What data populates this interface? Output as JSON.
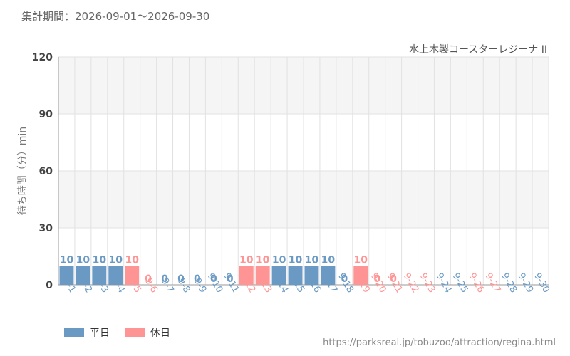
{
  "period_text": "集計期間：2026-09-01～2026-09-30",
  "source_url": "https://parksreal.jp/tobuzoo/attraction/regina.html",
  "colors": {
    "weekday": "#6a9ac4",
    "holiday": "#ff9494",
    "plot_band": "#f5f5f5",
    "grid": "#e2e2e2"
  },
  "chart_data": {
    "type": "bar",
    "title": "水上木製コースターレジーナ II",
    "ylabel": "待ち時間（分）min",
    "xlabel": "",
    "ylim": [
      0,
      120
    ],
    "yticks": [
      0,
      30,
      60,
      90,
      120
    ],
    "grid": true,
    "legend_position": "bottom-left",
    "categories": [
      "9-1",
      "9-2",
      "9-3",
      "9-4",
      "9-5",
      "9-6",
      "9-7",
      "9-8",
      "9-9",
      "9-10",
      "9-11",
      "9-12",
      "9-13",
      "9-14",
      "9-15",
      "9-16",
      "9-17",
      "9-18",
      "9-19",
      "9-20",
      "9-21",
      "9-22",
      "9-23",
      "9-24",
      "9-25",
      "9-26",
      "9-27",
      "9-28",
      "9-29",
      "9-30"
    ],
    "day_type": [
      "weekday",
      "weekday",
      "weekday",
      "weekday",
      "holiday",
      "holiday",
      "weekday",
      "weekday",
      "weekday",
      "weekday",
      "weekday",
      "holiday",
      "holiday",
      "weekday",
      "weekday",
      "weekday",
      "weekday",
      "weekday",
      "holiday",
      "holiday",
      "holiday",
      "holiday",
      "holiday",
      "weekday",
      "weekday",
      "holiday",
      "holiday",
      "weekday",
      "weekday",
      "weekday"
    ],
    "values": [
      10,
      10,
      10,
      10,
      10,
      0,
      0,
      0,
      0,
      0,
      0,
      10,
      10,
      10,
      10,
      10,
      10,
      0,
      10,
      0,
      0,
      null,
      null,
      null,
      null,
      null,
      null,
      null,
      null,
      null
    ],
    "legend": [
      {
        "key": "weekday",
        "label": "平日"
      },
      {
        "key": "holiday",
        "label": "休日"
      }
    ]
  }
}
